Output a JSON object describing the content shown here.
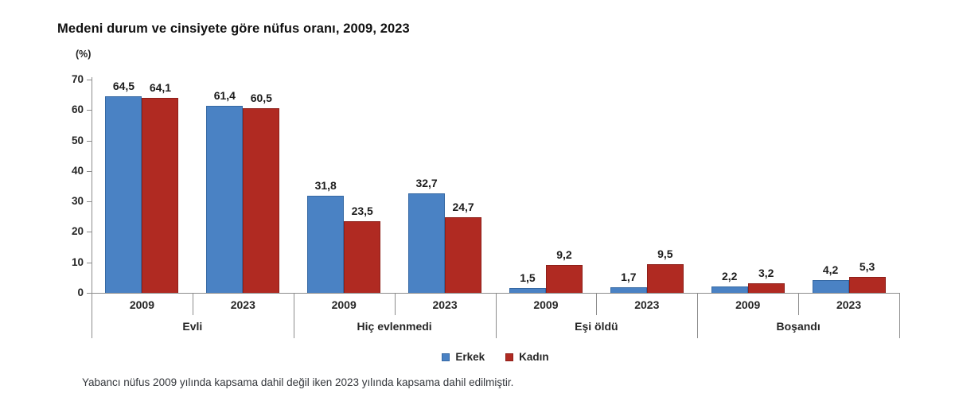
{
  "footnote": "Yabancı nüfus 2009 yılında kapsama dahil değil iken 2023 yılında kapsama dahil edilmiştir.",
  "chart_data": {
    "type": "bar",
    "title": "Medeni durum ve cinsiyete göre nüfus oranı, 2009, 2023",
    "y_axis": {
      "unit": "(%)",
      "min": 0,
      "max": 70,
      "tick_step": 10,
      "ticks": [
        0,
        10,
        20,
        30,
        40,
        50,
        60,
        70
      ]
    },
    "decimal_separator": ",",
    "grid": "off",
    "legend_position": "bottom-center",
    "series_meta": [
      {
        "name": "Erkek",
        "key": "erkek",
        "color": "#4A82C4",
        "border_color": "#3568A3"
      },
      {
        "name": "Kadın",
        "key": "kadin",
        "color": "#B02A22",
        "border_color": "#8E1F19"
      }
    ],
    "categories": [
      {
        "label": "Evli",
        "groups": [
          {
            "label": "2009",
            "values": [
              64.5,
              64.1
            ]
          },
          {
            "label": "2023",
            "values": [
              61.4,
              60.5
            ]
          }
        ]
      },
      {
        "label": "Hiç evlenmedi",
        "groups": [
          {
            "label": "2009",
            "values": [
              31.8,
              23.5
            ]
          },
          {
            "label": "2023",
            "values": [
              32.7,
              24.7
            ]
          }
        ]
      },
      {
        "label": "Eşi öldü",
        "groups": [
          {
            "label": "2009",
            "values": [
              1.5,
              9.2
            ]
          },
          {
            "label": "2023",
            "values": [
              1.7,
              9.5
            ]
          }
        ]
      },
      {
        "label": "Boşandı",
        "groups": [
          {
            "label": "2009",
            "values": [
              2.2,
              3.2
            ]
          },
          {
            "label": "2023",
            "values": [
              4.2,
              5.3
            ]
          }
        ]
      }
    ]
  }
}
